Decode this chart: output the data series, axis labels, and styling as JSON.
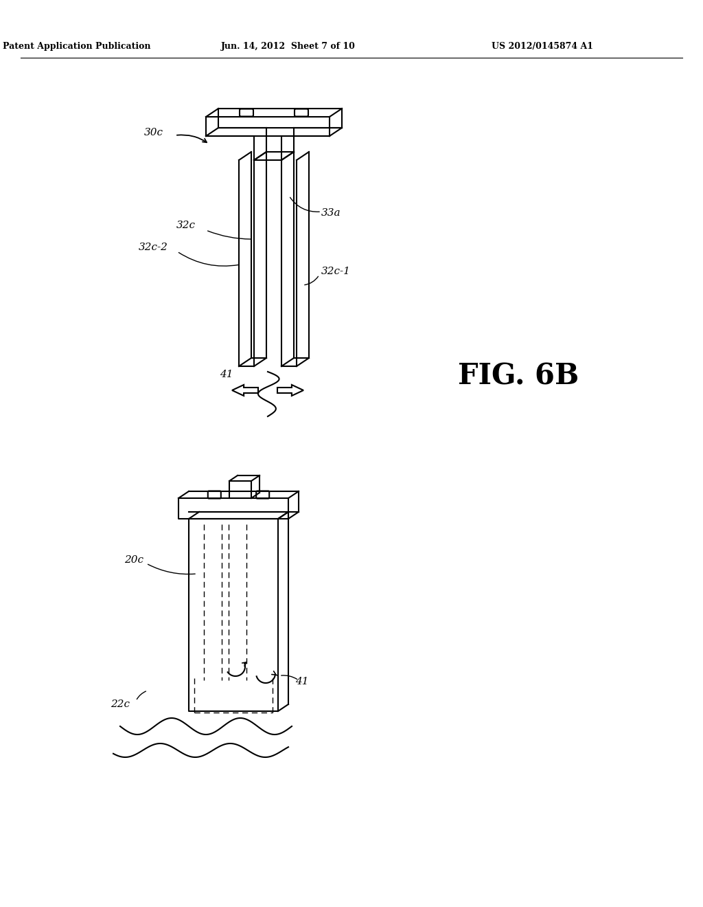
{
  "bg_color": "#ffffff",
  "header_left": "Patent Application Publication",
  "header_mid": "Jun. 14, 2012  Sheet 7 of 10",
  "header_right": "US 2012/0145874 A1",
  "fig_label": "FIG. 6B",
  "fig_width": 10.24,
  "fig_height": 13.2,
  "dpi": 100,
  "lc": "#000000",
  "lw": 1.5,
  "lw_thin": 0.8,
  "fs_header": 9,
  "fs_label": 11,
  "fs_fig": 30
}
